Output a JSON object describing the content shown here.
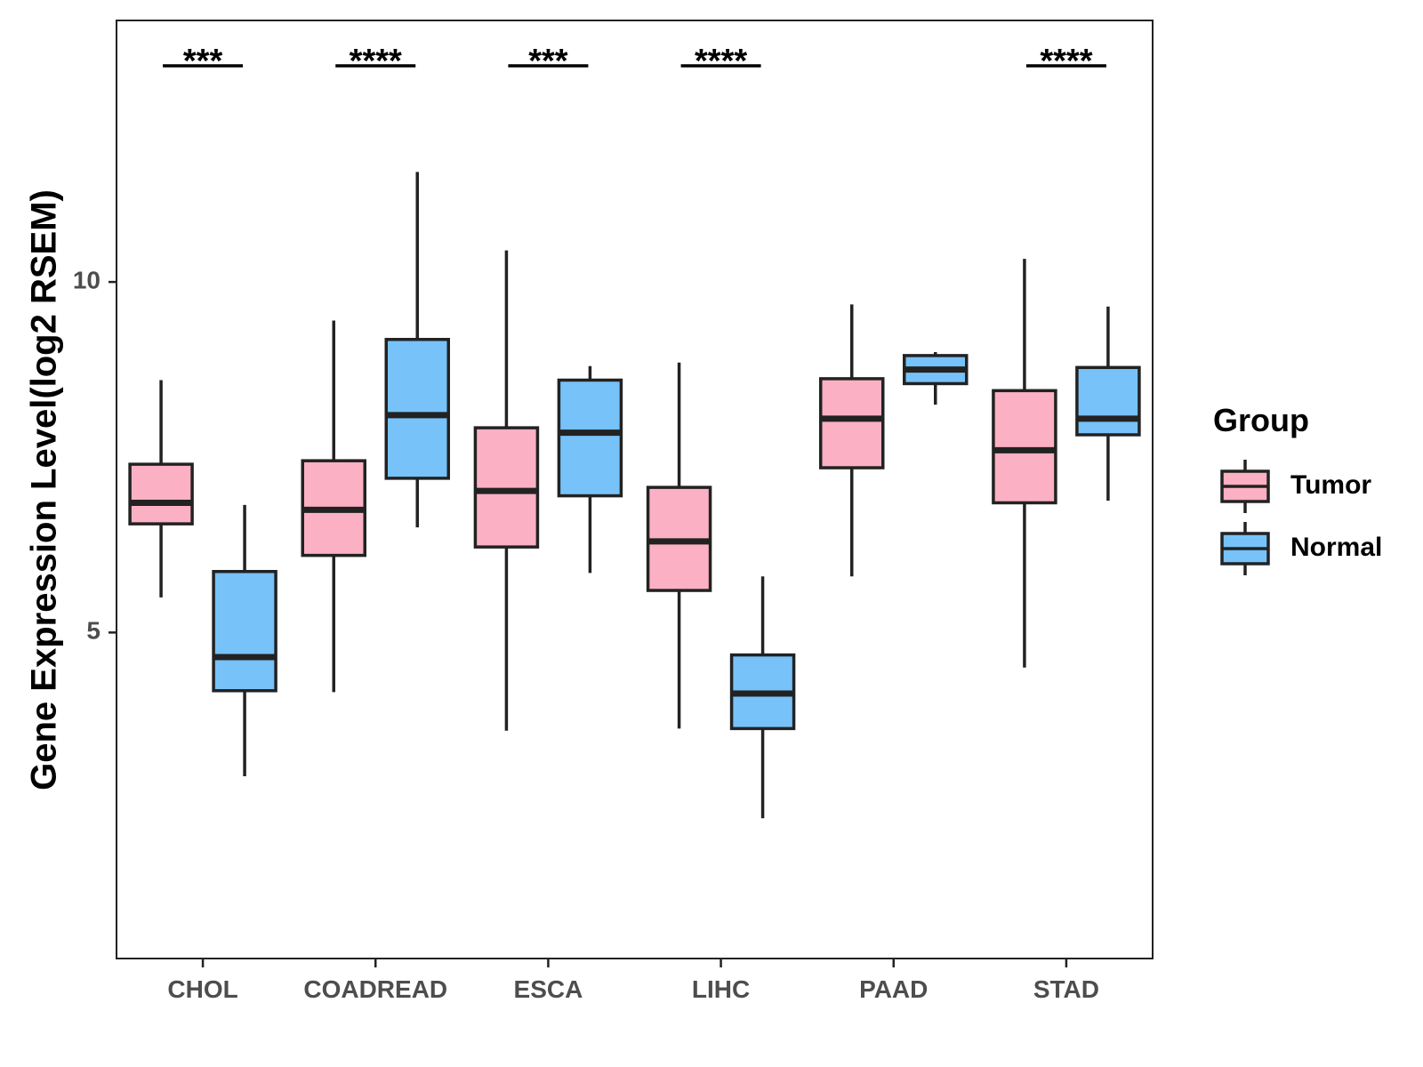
{
  "chart_data": {
    "type": "boxplot",
    "title": "",
    "xlabel": "",
    "ylabel": "Gene Expression Level(log2 RSEM)",
    "categories": [
      "CHOL",
      "COADREAD",
      "ESCA",
      "LIHC",
      "PAAD",
      "STAD"
    ],
    "yticks": [
      5,
      10
    ],
    "ylim": [
      0.35,
      13.73
    ],
    "grid": false,
    "legend": {
      "title": "Group",
      "position": "right"
    },
    "significance": [
      "***",
      "****",
      "***",
      "****",
      "",
      "****"
    ],
    "series": [
      {
        "name": "Tumor",
        "color": "#fbb1c3",
        "boxes": [
          {
            "low": 5.5,
            "q1": 6.55,
            "median": 6.85,
            "q3": 7.4,
            "high": 8.6
          },
          {
            "low": 4.15,
            "q1": 6.1,
            "median": 6.75,
            "q3": 7.45,
            "high": 9.45
          },
          {
            "low": 3.6,
            "q1": 6.22,
            "median": 7.02,
            "q3": 7.92,
            "high": 10.45
          },
          {
            "low": 3.63,
            "q1": 5.6,
            "median": 6.3,
            "q3": 7.07,
            "high": 8.85
          },
          {
            "low": 5.8,
            "q1": 7.35,
            "median": 8.05,
            "q3": 8.62,
            "high": 9.68
          },
          {
            "low": 4.5,
            "q1": 6.85,
            "median": 7.6,
            "q3": 8.45,
            "high": 10.33
          }
        ]
      },
      {
        "name": "Normal",
        "color": "#77c2f8",
        "boxes": [
          {
            "low": 2.95,
            "q1": 4.17,
            "median": 4.65,
            "q3": 5.87,
            "high": 6.82
          },
          {
            "low": 6.5,
            "q1": 7.2,
            "median": 8.1,
            "q3": 9.18,
            "high": 11.57
          },
          {
            "low": 5.85,
            "q1": 6.95,
            "median": 7.85,
            "q3": 8.6,
            "high": 8.8
          },
          {
            "low": 2.35,
            "q1": 3.63,
            "median": 4.13,
            "q3": 4.68,
            "high": 5.8
          },
          {
            "low": 8.25,
            "q1": 8.55,
            "median": 8.75,
            "q3": 8.95,
            "high": 9.0
          },
          {
            "low": 6.88,
            "q1": 7.82,
            "median": 8.05,
            "q3": 8.78,
            "high": 9.65
          }
        ]
      }
    ]
  }
}
